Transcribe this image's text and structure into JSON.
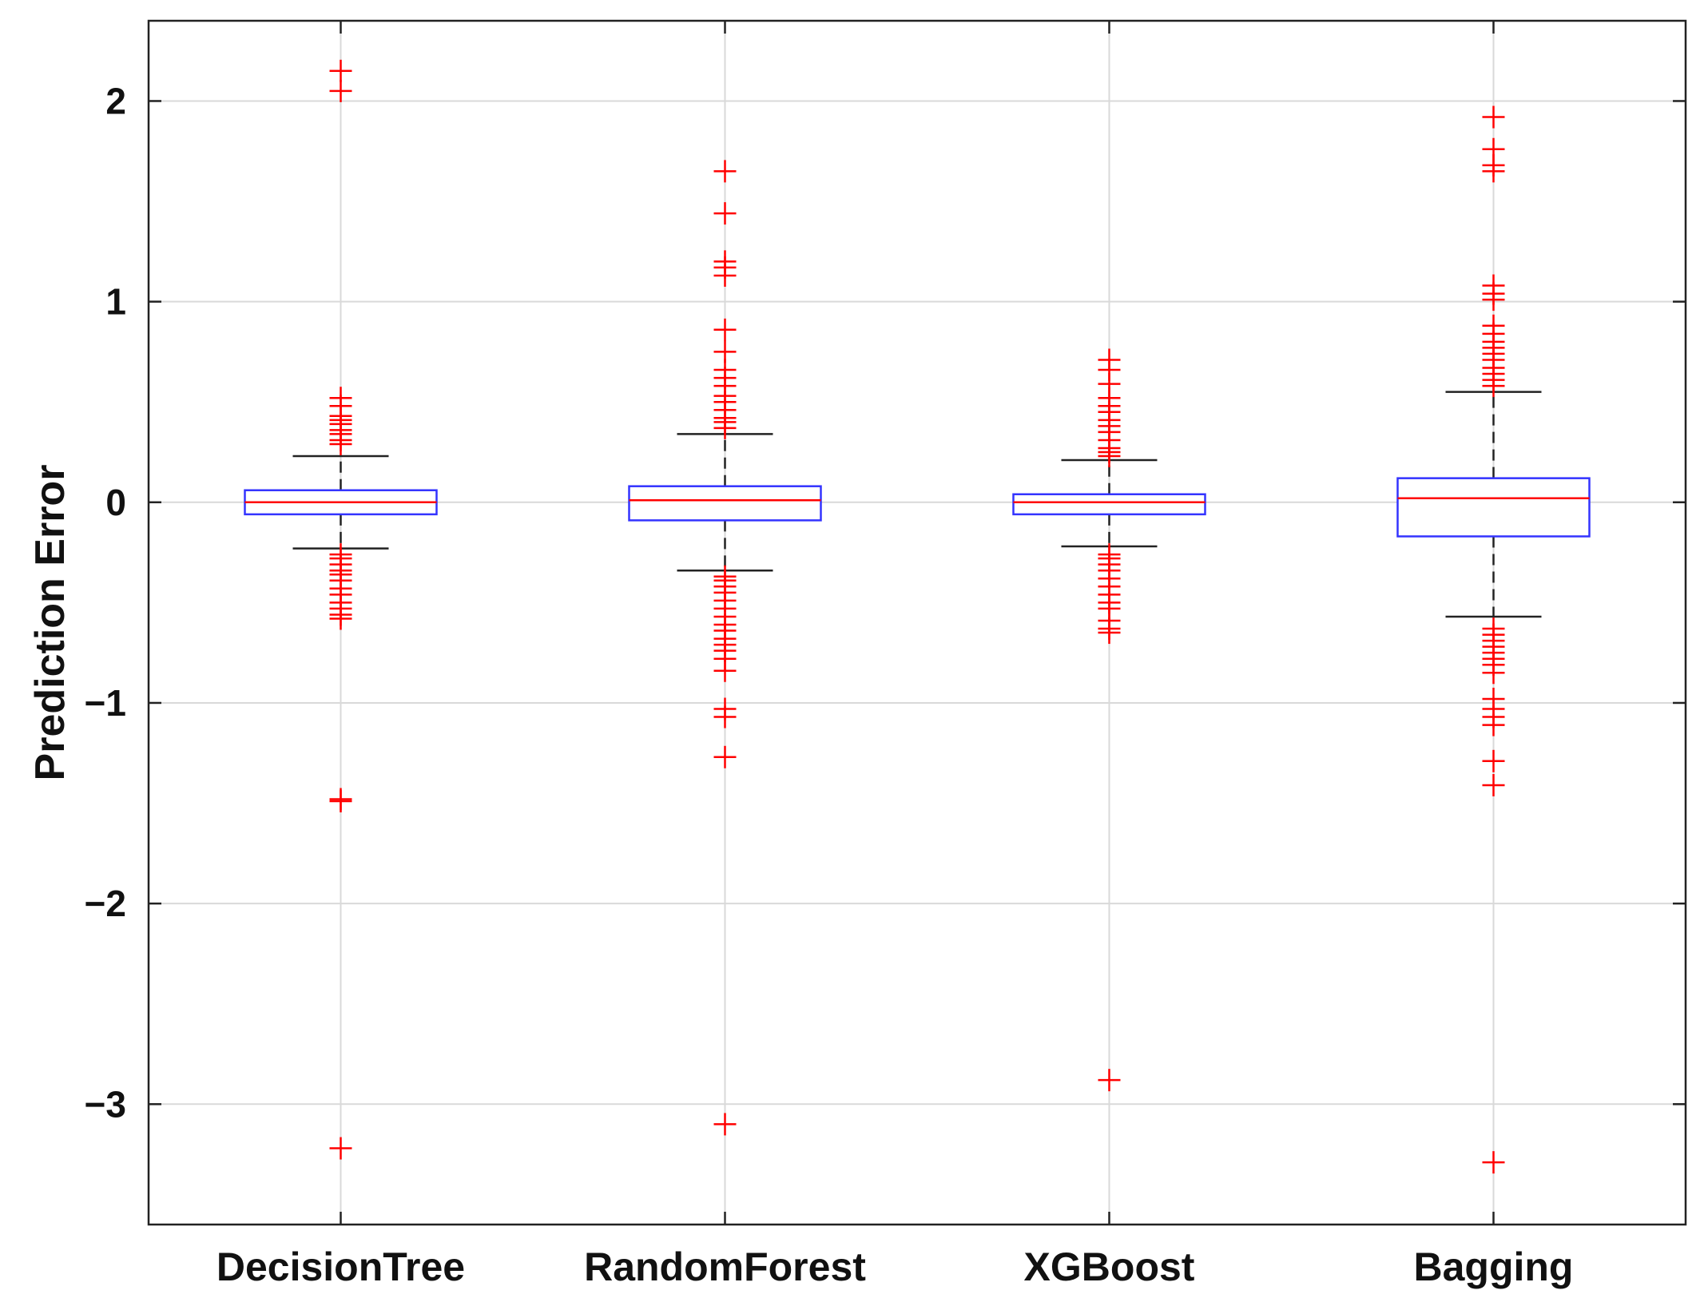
{
  "chart_data": {
    "type": "boxplot",
    "title": "",
    "xlabel": "",
    "ylabel": "Prediction Error",
    "ylim": [
      -3.6,
      2.4
    ],
    "yticks": [
      2,
      1,
      0,
      -1,
      -2,
      -3
    ],
    "ytick_labels": [
      "2",
      "1",
      "0",
      "−1",
      "−2",
      "−3"
    ],
    "grid": true,
    "colors": {
      "box": "#3333ff",
      "median": "#ff0000",
      "whisker": "#222222",
      "outlier": "#ff0000",
      "grid": "#d9d9d9",
      "axis": "#222222"
    },
    "categories": [
      "DecisionTree",
      "RandomForest",
      "XGBoost",
      "Bagging"
    ],
    "series": [
      {
        "name": "DecisionTree",
        "q1": -0.06,
        "median": 0.0,
        "q3": 0.06,
        "whisker_low": -0.23,
        "whisker_high": 0.23,
        "outliers": [
          2.15,
          2.05,
          0.52,
          0.48,
          0.43,
          0.41,
          0.39,
          0.36,
          0.34,
          0.31,
          0.29,
          -0.26,
          -0.28,
          -0.31,
          -0.34,
          -0.36,
          -0.39,
          -0.43,
          -0.46,
          -0.5,
          -0.53,
          -0.56,
          -0.58,
          -1.48,
          -1.49,
          -3.22
        ]
      },
      {
        "name": "RandomForest",
        "q1": -0.09,
        "median": 0.01,
        "q3": 0.08,
        "whisker_low": -0.34,
        "whisker_high": 0.34,
        "outliers": [
          1.65,
          1.44,
          1.2,
          1.17,
          1.13,
          0.86,
          0.75,
          0.66,
          0.62,
          0.58,
          0.53,
          0.5,
          0.46,
          0.42,
          0.4,
          0.37,
          -0.37,
          -0.39,
          -0.42,
          -0.45,
          -0.49,
          -0.53,
          -0.57,
          -0.61,
          -0.64,
          -0.68,
          -0.71,
          -0.74,
          -0.78,
          -0.84,
          -1.03,
          -1.07,
          -1.27,
          -3.1
        ]
      },
      {
        "name": "XGBoost",
        "q1": -0.06,
        "median": 0.0,
        "q3": 0.04,
        "whisker_low": -0.22,
        "whisker_high": 0.21,
        "outliers": [
          0.71,
          0.66,
          0.59,
          0.52,
          0.48,
          0.45,
          0.41,
          0.38,
          0.35,
          0.31,
          0.27,
          0.25,
          0.23,
          -0.26,
          -0.28,
          -0.31,
          -0.34,
          -0.38,
          -0.42,
          -0.46,
          -0.5,
          -0.53,
          -0.59,
          -0.63,
          -0.65,
          -2.88
        ]
      },
      {
        "name": "Bagging",
        "q1": -0.17,
        "median": 0.02,
        "q3": 0.12,
        "whisker_low": -0.57,
        "whisker_high": 0.55,
        "outliers": [
          1.92,
          1.76,
          1.68,
          1.65,
          1.08,
          1.04,
          1.01,
          0.88,
          0.84,
          0.8,
          0.77,
          0.74,
          0.71,
          0.67,
          0.64,
          0.61,
          0.58,
          -0.63,
          -0.66,
          -0.69,
          -0.72,
          -0.75,
          -0.78,
          -0.81,
          -0.85,
          -0.98,
          -1.03,
          -1.07,
          -1.11,
          -1.29,
          -1.41,
          -3.29
        ]
      }
    ]
  }
}
